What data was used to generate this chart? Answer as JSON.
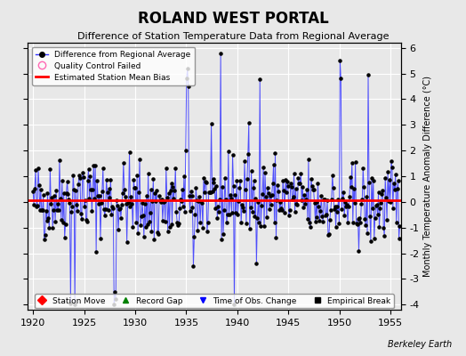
{
  "title": "ROLAND WEST PORTAL",
  "subtitle": "Difference of Station Temperature Data from Regional Average",
  "ylabel": "Monthly Temperature Anomaly Difference (°C)",
  "xlabel_label": "Berkeley Earth",
  "xlim": [
    1919.5,
    1956.0
  ],
  "ylim": [
    -4.2,
    6.2
  ],
  "yticks": [
    -4,
    -3,
    -2,
    -1,
    0,
    1,
    2,
    3,
    4,
    5,
    6
  ],
  "xticks": [
    1920,
    1925,
    1930,
    1935,
    1940,
    1945,
    1950,
    1955
  ],
  "bias_value": 0.05,
  "line_color": "#3333ff",
  "dot_color": "#000000",
  "bias_color": "#ff0000",
  "background_color": "#e8e8e8",
  "grid_color": "#ffffff",
  "seed": 42
}
